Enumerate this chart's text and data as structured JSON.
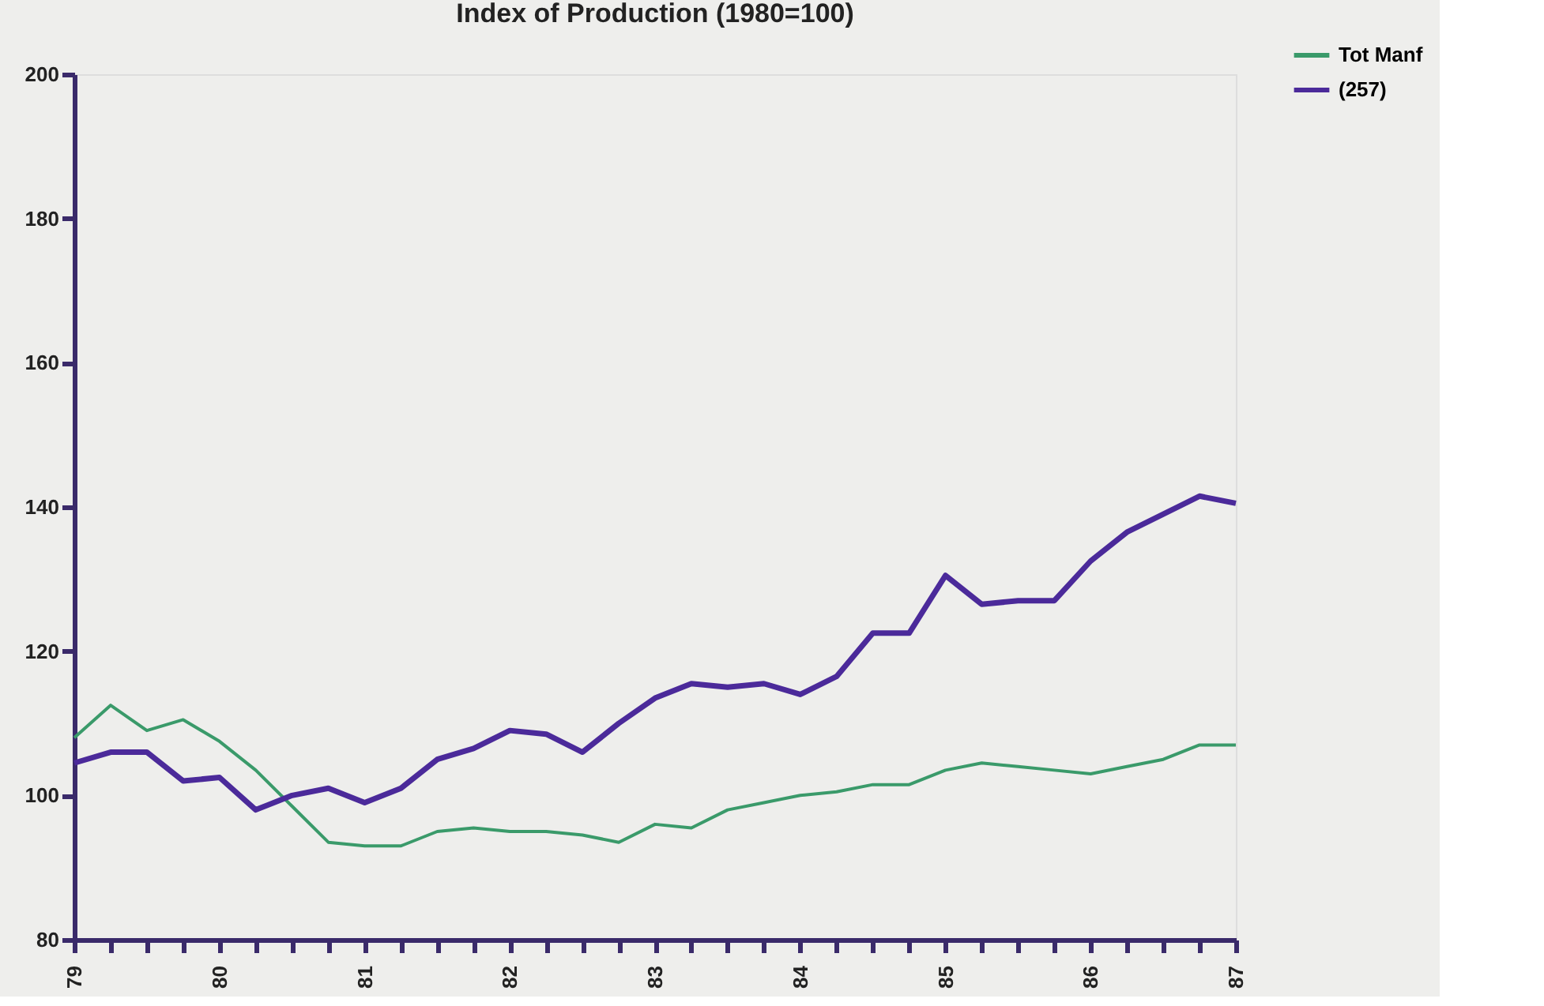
{
  "chart_data": {
    "type": "line",
    "title": "Index of Production (1980=100)",
    "categories": [
      "79",
      null,
      null,
      null,
      "80",
      null,
      null,
      null,
      "81",
      null,
      null,
      null,
      "82",
      null,
      null,
      null,
      "83",
      null,
      null,
      null,
      "84",
      null,
      null,
      null,
      "85",
      null,
      null,
      null,
      "86",
      null,
      null,
      null,
      "87"
    ],
    "series": [
      {
        "name": "Tot Manf",
        "color": "#3a9a6a",
        "values": [
          108,
          112.5,
          109,
          110.5,
          107.5,
          103.5,
          98.5,
          93.5,
          93,
          93,
          95,
          95.5,
          95,
          95,
          94.5,
          93.5,
          96,
          95.5,
          98,
          99,
          100,
          100.5,
          101.5,
          101.5,
          103.5,
          104.5,
          104,
          103.5,
          103,
          104,
          105,
          107,
          107
        ]
      },
      {
        "name": "(257)",
        "color": "#4b2a9a",
        "values": [
          104.5,
          106,
          106,
          102,
          102.5,
          98,
          100,
          101,
          99,
          101,
          105,
          106.5,
          109,
          108.5,
          106,
          110,
          113.5,
          115.5,
          115,
          115.5,
          114,
          116.5,
          122.5,
          122.5,
          130.5,
          126.5,
          127,
          127,
          132.5,
          136.5,
          139,
          141.5,
          140.5
        ]
      }
    ],
    "ylim": [
      80,
      200
    ],
    "yticks": [
      80,
      100,
      120,
      140,
      160,
      180,
      200
    ],
    "grid": false,
    "legend": "top right",
    "marker": "none",
    "line_style": "solid"
  }
}
